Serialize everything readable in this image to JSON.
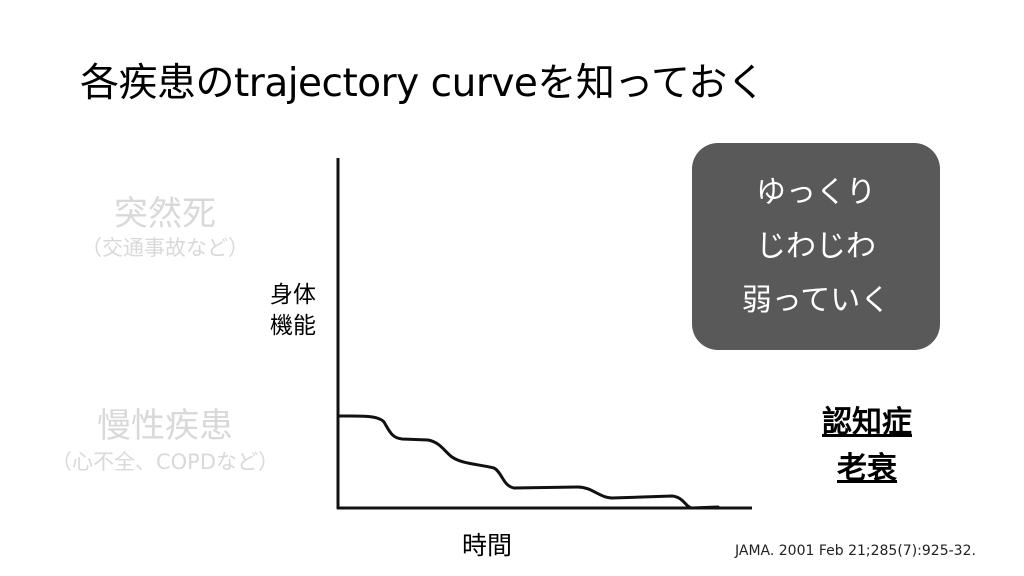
{
  "title": "各疾患のtrajectory curveを知っておく",
  "categories": {
    "sudden_death": {
      "label": "突然死",
      "example": "（交通事故など）"
    },
    "chronic_disease": {
      "label": "慢性疾患",
      "example": "（心不全、COPDなど）"
    },
    "current": {
      "lines": [
        "認知症",
        "老衰"
      ]
    }
  },
  "diagram": {
    "y_axis_label": [
      "身体",
      "機能"
    ],
    "x_axis_label": "時間"
  },
  "callout": {
    "lines": [
      "ゆっくり",
      "じわじわ",
      "弱っていく"
    ],
    "background": "#595959"
  },
  "citation": "JAMA. 2001 Feb 21;285(7):925-32."
}
